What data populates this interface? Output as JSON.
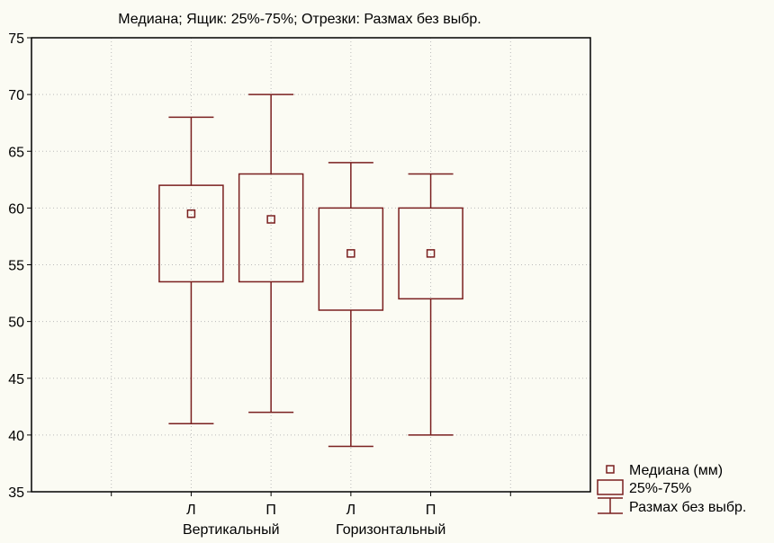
{
  "chart_data": {
    "type": "boxplot",
    "title": "Медиана; Ящик: 25%-75%; Отрезки: Размах без выбр.",
    "ylim": [
      35,
      75
    ],
    "yticks": [
      35,
      40,
      45,
      50,
      55,
      60,
      65,
      70,
      75
    ],
    "grid": true,
    "color": "#7a1f1f",
    "categories": [
      {
        "label": "Л",
        "group": "Вертикальный",
        "median": 59.5,
        "q1": 53.5,
        "q3": 62,
        "min": 41,
        "max": 68
      },
      {
        "label": "П",
        "group": "Вертикальный",
        "median": 59,
        "q1": 53.5,
        "q3": 63,
        "min": 42,
        "max": 70
      },
      {
        "label": "Л",
        "group": "Горизонтальный",
        "median": 56,
        "q1": 51,
        "q3": 60,
        "min": 39,
        "max": 64
      },
      {
        "label": "П",
        "group": "Горизонтальный",
        "median": 56,
        "q1": 52,
        "q3": 60,
        "min": 40,
        "max": 63
      }
    ],
    "groups": [
      "Вертикальный",
      "Горизонтальный"
    ],
    "legend": {
      "placement": "bottom-right",
      "items": [
        "Медиана (мм)",
        "25%-75%",
        "Размах без выбр."
      ]
    }
  }
}
